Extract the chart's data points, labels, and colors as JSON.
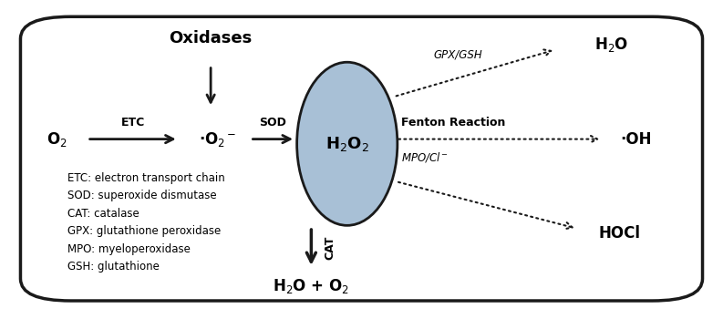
{
  "fig_width": 7.93,
  "fig_height": 3.5,
  "dpi": 100,
  "bg_color": "#ffffff",
  "box_color": "#1a1a1a",
  "circle_color": "#a8c0d6",
  "circle_edge": "#1a1a1a",
  "h2o2_label": "H$_2$O$_2$",
  "oxidases_label": "Oxidases",
  "o2_label": "O$_2$",
  "superoxide_label": "·O$_2$$^-$",
  "etc_label": "ETC",
  "sod_label": "SOD",
  "cat_label": "CAT",
  "gpx_gsh_label": "GPX/GSH",
  "fenton_label": "Fenton Reaction",
  "mpo_cl_label": "MPO/Cl$^-$",
  "h2o_label": "H$_2$O",
  "oh_label": "·OH",
  "hocl_label": "HOCl",
  "h2o_o2_label": "H$_2$O + O$_2$",
  "legend_text": "ETC: electron transport chain\nSOD: superoxide dismutase\nCAT: catalase\nGPX: glutathione peroxidase\nMPO: myeloperoxidase\nGSH: glutathione",
  "text_color": "#000000",
  "arrow_color": "#1a1a1a"
}
